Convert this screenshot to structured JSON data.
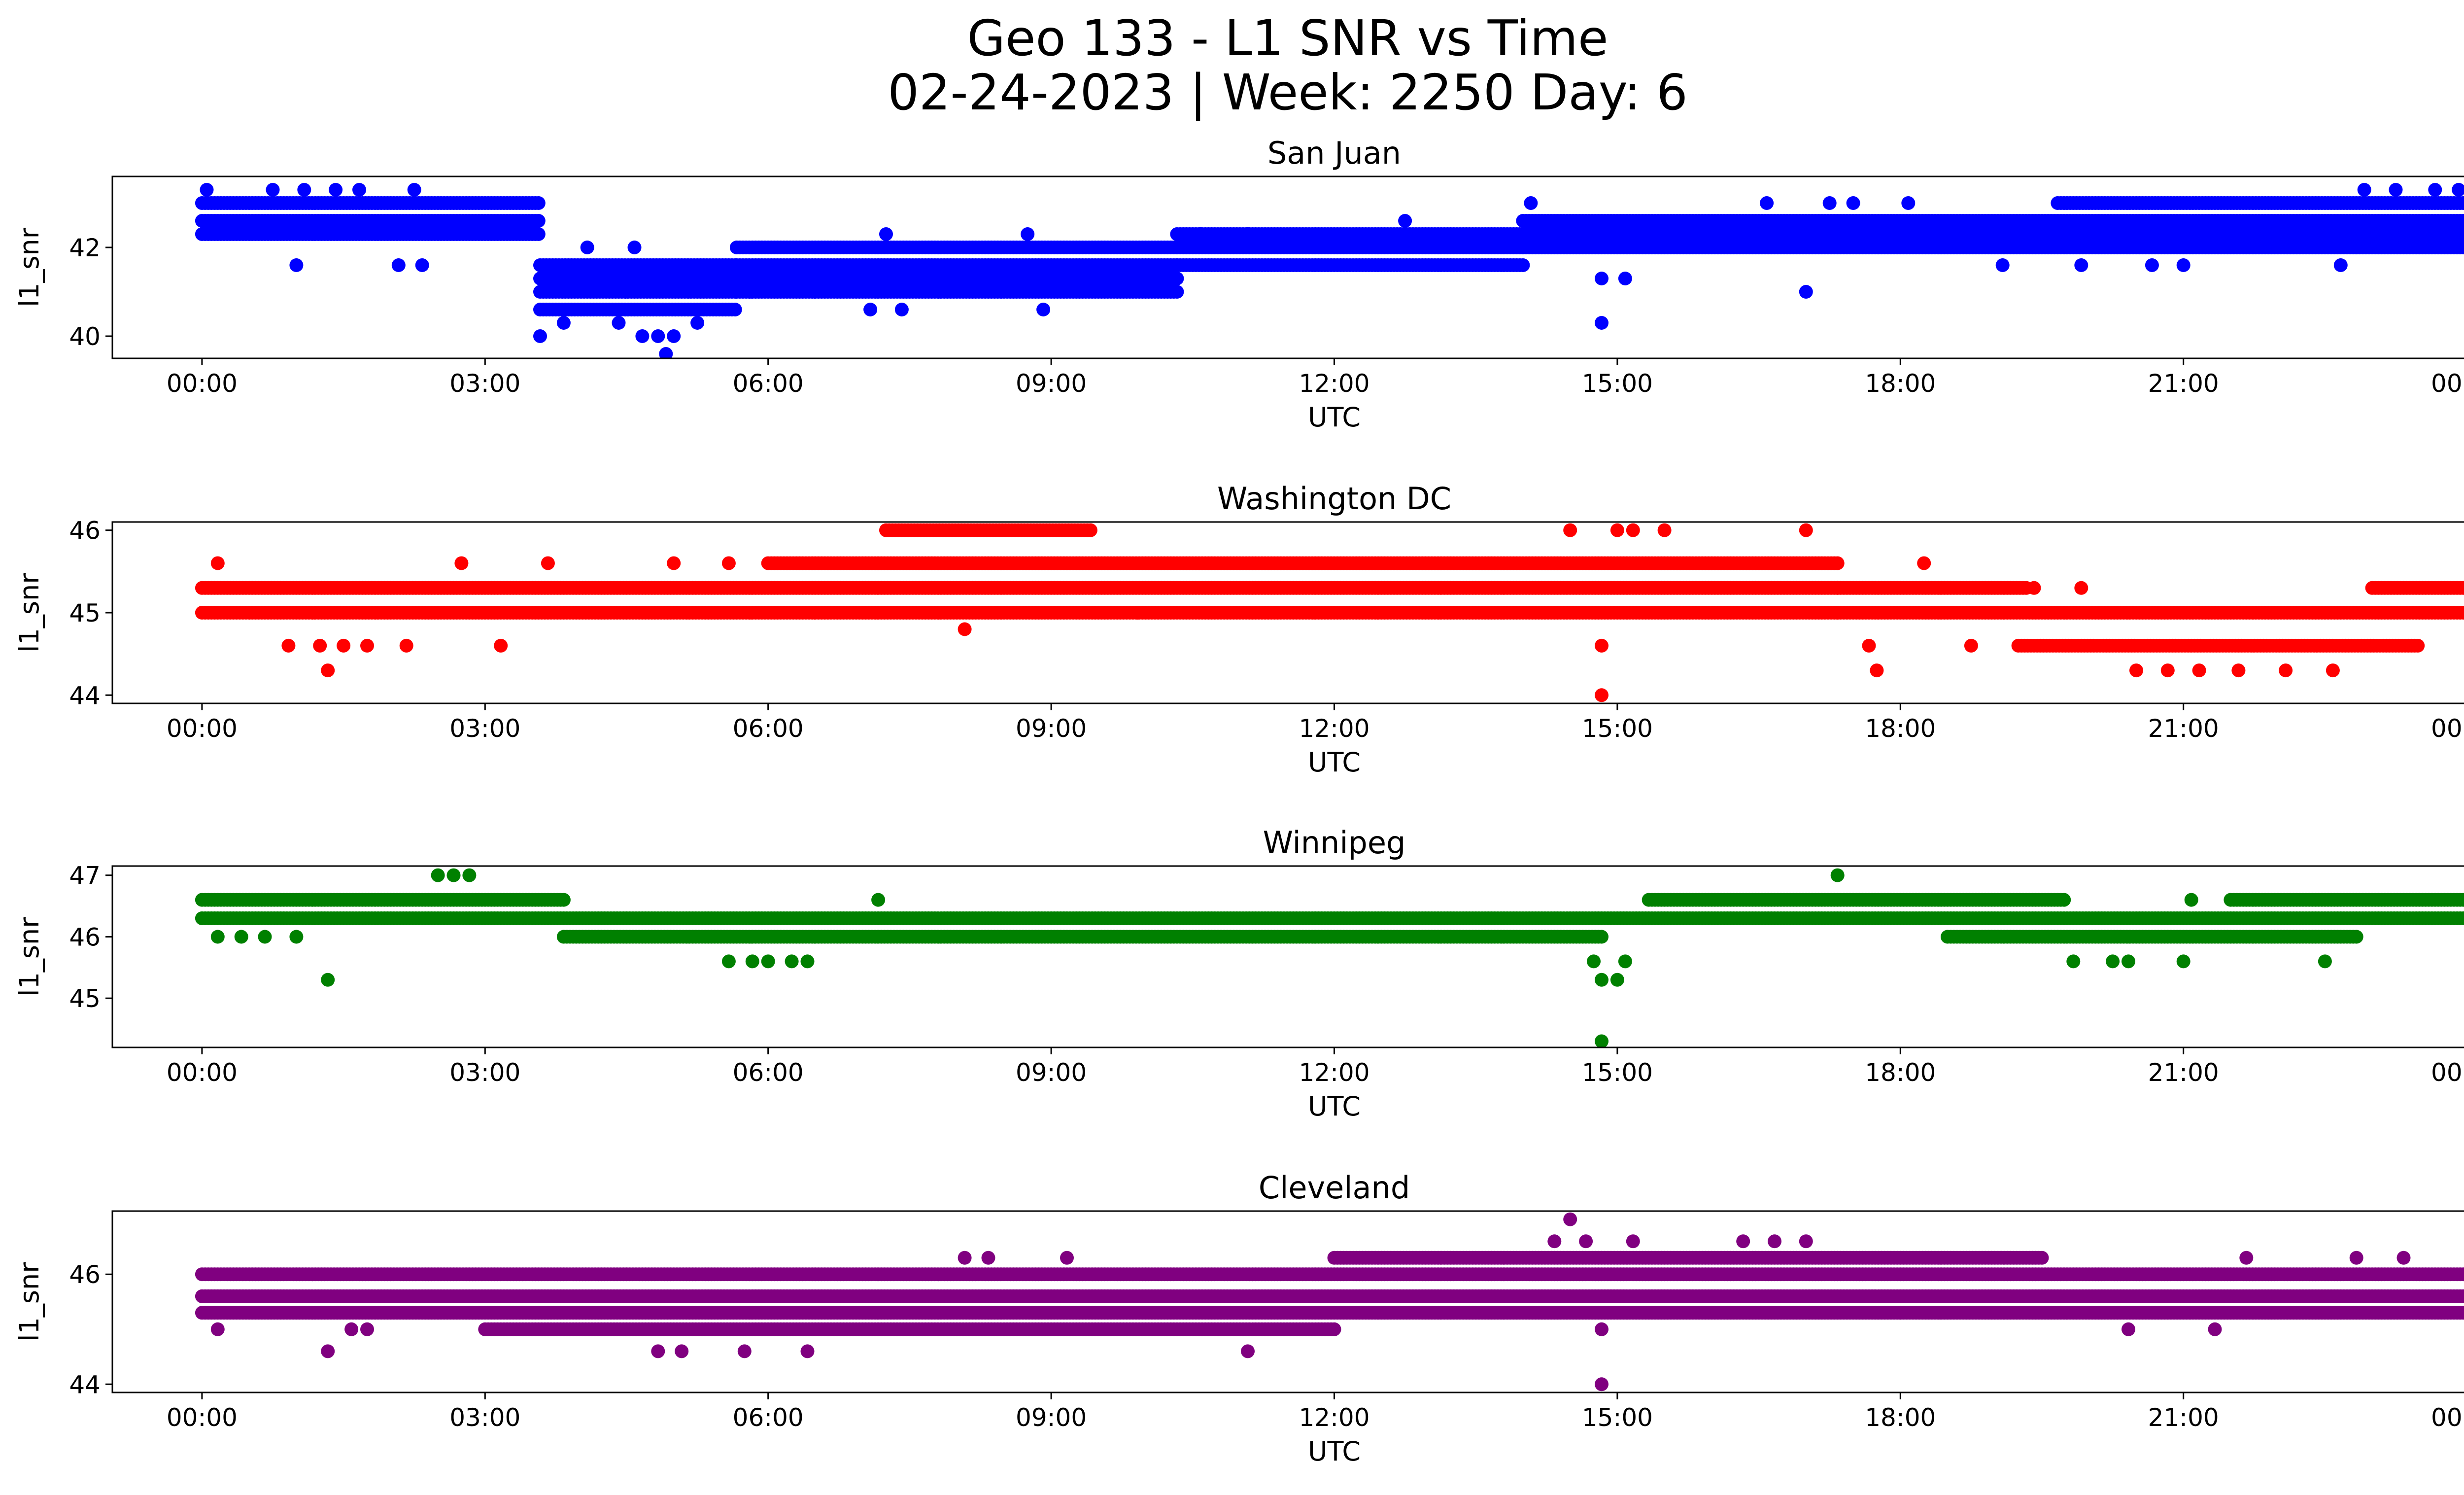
{
  "figure": {
    "title_line1": "Geo 133 - L1 SNR vs Time",
    "title_line2": "02-24-2023 | Week: 2250 Day: 6"
  },
  "chart_data": [
    {
      "type": "scatter",
      "title": "San Juan",
      "xlabel": "UTC",
      "ylabel": "l1_snr",
      "color": "#0000ff",
      "xlim": [
        "-00:57",
        "24:57"
      ],
      "ylim": [
        39.5,
        43.6
      ],
      "x_ticks": [
        "00:00",
        "03:00",
        "06:00",
        "09:00",
        "12:00",
        "15:00",
        "18:00",
        "21:00",
        "00:00"
      ],
      "y_ticks": [
        40,
        42
      ],
      "bands": [
        {
          "x_from": "00:00",
          "x_to": "03:35",
          "y_values": [
            42.3,
            42.6,
            43.0
          ]
        },
        {
          "x_from": "03:35",
          "x_to": "05:40",
          "y_values": [
            40.6,
            41.0,
            41.3,
            41.6
          ]
        },
        {
          "x_from": "05:40",
          "x_to": "10:20",
          "y_values": [
            41.0,
            41.3,
            41.6,
            42.0
          ]
        },
        {
          "x_from": "10:20",
          "x_to": "14:00",
          "y_values": [
            41.6,
            42.0,
            42.3
          ]
        },
        {
          "x_from": "14:00",
          "x_to": "24:00",
          "y_values": [
            42.0,
            42.3,
            42.6
          ]
        },
        {
          "x_from": "19:40",
          "x_to": "24:00",
          "y_values": [
            43.0
          ]
        }
      ],
      "outliers": [
        {
          "x": "00:03",
          "y": 43.3
        },
        {
          "x": "00:45",
          "y": 43.3
        },
        {
          "x": "01:00",
          "y": 41.6
        },
        {
          "x": "01:05",
          "y": 43.3
        },
        {
          "x": "01:25",
          "y": 43.3
        },
        {
          "x": "01:40",
          "y": 43.3
        },
        {
          "x": "02:05",
          "y": 41.6
        },
        {
          "x": "02:20",
          "y": 41.6
        },
        {
          "x": "02:15",
          "y": 43.3
        },
        {
          "x": "03:35",
          "y": 40.0
        },
        {
          "x": "03:50",
          "y": 40.3
        },
        {
          "x": "04:05",
          "y": 42.0
        },
        {
          "x": "04:25",
          "y": 40.3
        },
        {
          "x": "04:35",
          "y": 42.0
        },
        {
          "x": "04:40",
          "y": 40.0
        },
        {
          "x": "04:50",
          "y": 40.0
        },
        {
          "x": "04:55",
          "y": 39.6
        },
        {
          "x": "05:00",
          "y": 40.0
        },
        {
          "x": "05:15",
          "y": 40.3
        },
        {
          "x": "07:05",
          "y": 40.6
        },
        {
          "x": "07:25",
          "y": 40.6
        },
        {
          "x": "07:15",
          "y": 42.3
        },
        {
          "x": "08:45",
          "y": 42.3
        },
        {
          "x": "08:55",
          "y": 40.6
        },
        {
          "x": "10:35",
          "y": 42.3
        },
        {
          "x": "11:05",
          "y": 42.3
        },
        {
          "x": "12:45",
          "y": 42.6
        },
        {
          "x": "14:05",
          "y": 43.0
        },
        {
          "x": "14:50",
          "y": 40.3
        },
        {
          "x": "14:50",
          "y": 41.3
        },
        {
          "x": "15:05",
          "y": 41.3
        },
        {
          "x": "16:35",
          "y": 43.0
        },
        {
          "x": "17:00",
          "y": 41.0
        },
        {
          "x": "17:15",
          "y": 43.0
        },
        {
          "x": "17:30",
          "y": 43.0
        },
        {
          "x": "18:05",
          "y": 43.0
        },
        {
          "x": "19:05",
          "y": 41.6
        },
        {
          "x": "19:55",
          "y": 41.6
        },
        {
          "x": "20:40",
          "y": 41.6
        },
        {
          "x": "21:00",
          "y": 41.6
        },
        {
          "x": "22:40",
          "y": 41.6
        },
        {
          "x": "22:50",
          "y": 42.0
        },
        {
          "x": "22:55",
          "y": 43.3
        },
        {
          "x": "23:15",
          "y": 43.3
        },
        {
          "x": "23:40",
          "y": 43.3
        },
        {
          "x": "23:55",
          "y": 43.3
        }
      ]
    },
    {
      "type": "scatter",
      "title": "Washington DC",
      "xlabel": "UTC",
      "ylabel": "l1_snr",
      "color": "#ff0000",
      "xlim": [
        "-00:57",
        "24:57"
      ],
      "ylim": [
        43.9,
        46.1
      ],
      "x_ticks": [
        "00:00",
        "03:00",
        "06:00",
        "09:00",
        "12:00",
        "15:00",
        "18:00",
        "21:00",
        "00:00"
      ],
      "y_ticks": [
        44,
        45,
        46
      ],
      "bands": [
        {
          "x_from": "00:00",
          "x_to": "17:20",
          "y_values": [
            45.0,
            45.3
          ]
        },
        {
          "x_from": "06:00",
          "x_to": "17:20",
          "y_values": [
            45.6
          ]
        },
        {
          "x_from": "07:15",
          "x_to": "09:25",
          "y_values": [
            46.0
          ]
        },
        {
          "x_from": "17:20",
          "x_to": "24:00",
          "y_values": [
            45.0
          ]
        },
        {
          "x_from": "17:20",
          "x_to": "19:20",
          "y_values": [
            45.3
          ]
        },
        {
          "x_from": "19:15",
          "x_to": "23:30",
          "y_values": [
            44.6
          ]
        },
        {
          "x_from": "23:00",
          "x_to": "24:00",
          "y_values": [
            45.3
          ]
        }
      ],
      "outliers": [
        {
          "x": "00:10",
          "y": 45.6
        },
        {
          "x": "00:55",
          "y": 44.6
        },
        {
          "x": "01:15",
          "y": 44.6
        },
        {
          "x": "01:20",
          "y": 44.3
        },
        {
          "x": "01:30",
          "y": 44.6
        },
        {
          "x": "01:45",
          "y": 44.6
        },
        {
          "x": "02:10",
          "y": 44.6
        },
        {
          "x": "02:45",
          "y": 45.6
        },
        {
          "x": "03:10",
          "y": 44.6
        },
        {
          "x": "03:40",
          "y": 45.6
        },
        {
          "x": "05:00",
          "y": 45.6
        },
        {
          "x": "05:35",
          "y": 45.6
        },
        {
          "x": "08:05",
          "y": 44.8
        },
        {
          "x": "09:55",
          "y": 45.0
        },
        {
          "x": "14:30",
          "y": 46.0
        },
        {
          "x": "14:50",
          "y": 44.6
        },
        {
          "x": "14:50",
          "y": 44.0
        },
        {
          "x": "15:00",
          "y": 46.0
        },
        {
          "x": "15:10",
          "y": 46.0
        },
        {
          "x": "15:30",
          "y": 46.0
        },
        {
          "x": "17:00",
          "y": 46.0
        },
        {
          "x": "17:40",
          "y": 44.6
        },
        {
          "x": "17:45",
          "y": 44.3
        },
        {
          "x": "18:15",
          "y": 45.6
        },
        {
          "x": "18:45",
          "y": 44.6
        },
        {
          "x": "19:25",
          "y": 45.3
        },
        {
          "x": "19:55",
          "y": 45.3
        },
        {
          "x": "20:30",
          "y": 44.3
        },
        {
          "x": "20:50",
          "y": 44.3
        },
        {
          "x": "21:10",
          "y": 44.3
        },
        {
          "x": "21:35",
          "y": 44.3
        },
        {
          "x": "22:05",
          "y": 44.3
        },
        {
          "x": "22:35",
          "y": 44.3
        }
      ]
    },
    {
      "type": "scatter",
      "title": "Winnipeg",
      "xlabel": "UTC",
      "ylabel": "l1_snr",
      "color": "#008000",
      "xlim": [
        "-00:57",
        "24:57"
      ],
      "ylim": [
        44.2,
        47.15
      ],
      "x_ticks": [
        "00:00",
        "03:00",
        "06:00",
        "09:00",
        "12:00",
        "15:00",
        "18:00",
        "21:00",
        "00:00"
      ],
      "y_ticks": [
        45,
        46,
        47
      ],
      "bands": [
        {
          "x_from": "00:00",
          "x_to": "24:00",
          "y_values": [
            46.3
          ]
        },
        {
          "x_from": "00:00",
          "x_to": "03:50",
          "y_values": [
            46.6
          ]
        },
        {
          "x_from": "03:50",
          "x_to": "14:50",
          "y_values": [
            46.0
          ]
        },
        {
          "x_from": "15:20",
          "x_to": "19:45",
          "y_values": [
            46.6
          ]
        },
        {
          "x_from": "18:30",
          "x_to": "22:50",
          "y_values": [
            46.0
          ]
        },
        {
          "x_from": "21:30",
          "x_to": "24:00",
          "y_values": [
            46.6
          ]
        }
      ],
      "outliers": [
        {
          "x": "00:10",
          "y": 46.0
        },
        {
          "x": "00:25",
          "y": 46.0
        },
        {
          "x": "00:40",
          "y": 46.0
        },
        {
          "x": "01:00",
          "y": 46.0
        },
        {
          "x": "01:20",
          "y": 45.3
        },
        {
          "x": "02:30",
          "y": 47.0
        },
        {
          "x": "02:40",
          "y": 47.0
        },
        {
          "x": "02:50",
          "y": 47.0
        },
        {
          "x": "05:35",
          "y": 45.6
        },
        {
          "x": "05:50",
          "y": 45.6
        },
        {
          "x": "06:00",
          "y": 45.6
        },
        {
          "x": "06:15",
          "y": 45.6
        },
        {
          "x": "06:25",
          "y": 45.6
        },
        {
          "x": "07:10",
          "y": 46.6
        },
        {
          "x": "14:45",
          "y": 45.6
        },
        {
          "x": "14:50",
          "y": 45.3
        },
        {
          "x": "14:50",
          "y": 44.3
        },
        {
          "x": "15:00",
          "y": 45.3
        },
        {
          "x": "15:05",
          "y": 45.6
        },
        {
          "x": "17:20",
          "y": 47.0
        },
        {
          "x": "19:50",
          "y": 45.6
        },
        {
          "x": "20:15",
          "y": 45.6
        },
        {
          "x": "20:25",
          "y": 45.6
        },
        {
          "x": "21:00",
          "y": 45.6
        },
        {
          "x": "21:05",
          "y": 46.6
        },
        {
          "x": "22:30",
          "y": 45.6
        }
      ]
    },
    {
      "type": "scatter",
      "title": "Cleveland",
      "xlabel": "UTC",
      "ylabel": "l1_snr",
      "color": "#800080",
      "xlim": [
        "-00:57",
        "24:57"
      ],
      "ylim": [
        43.85,
        47.15
      ],
      "x_ticks": [
        "00:00",
        "03:00",
        "06:00",
        "09:00",
        "12:00",
        "15:00",
        "18:00",
        "21:00",
        "00:00"
      ],
      "y_ticks": [
        44,
        46
      ],
      "bands": [
        {
          "x_from": "00:00",
          "x_to": "24:00",
          "y_values": [
            45.3,
            45.6,
            46.0
          ]
        },
        {
          "x_from": "03:00",
          "x_to": "12:00",
          "y_values": [
            45.0
          ]
        },
        {
          "x_from": "12:00",
          "x_to": "19:30",
          "y_values": [
            46.3
          ]
        }
      ],
      "outliers": [
        {
          "x": "00:10",
          "y": 45.0
        },
        {
          "x": "01:20",
          "y": 44.6
        },
        {
          "x": "01:35",
          "y": 45.0
        },
        {
          "x": "01:45",
          "y": 45.0
        },
        {
          "x": "04:50",
          "y": 44.6
        },
        {
          "x": "05:05",
          "y": 44.6
        },
        {
          "x": "05:45",
          "y": 44.6
        },
        {
          "x": "06:25",
          "y": 44.6
        },
        {
          "x": "08:05",
          "y": 46.3
        },
        {
          "x": "08:20",
          "y": 46.3
        },
        {
          "x": "09:10",
          "y": 46.3
        },
        {
          "x": "11:05",
          "y": 44.6
        },
        {
          "x": "14:20",
          "y": 46.6
        },
        {
          "x": "14:30",
          "y": 47.0
        },
        {
          "x": "14:40",
          "y": 46.6
        },
        {
          "x": "14:50",
          "y": 44.0
        },
        {
          "x": "14:50",
          "y": 45.0
        },
        {
          "x": "15:10",
          "y": 46.6
        },
        {
          "x": "16:20",
          "y": 46.6
        },
        {
          "x": "16:40",
          "y": 46.6
        },
        {
          "x": "17:00",
          "y": 46.6
        },
        {
          "x": "18:00",
          "y": 45.3
        },
        {
          "x": "20:25",
          "y": 45.0
        },
        {
          "x": "21:20",
          "y": 45.0
        },
        {
          "x": "21:40",
          "y": 46.3
        },
        {
          "x": "22:50",
          "y": 46.3
        },
        {
          "x": "23:20",
          "y": 46.3
        }
      ]
    }
  ]
}
